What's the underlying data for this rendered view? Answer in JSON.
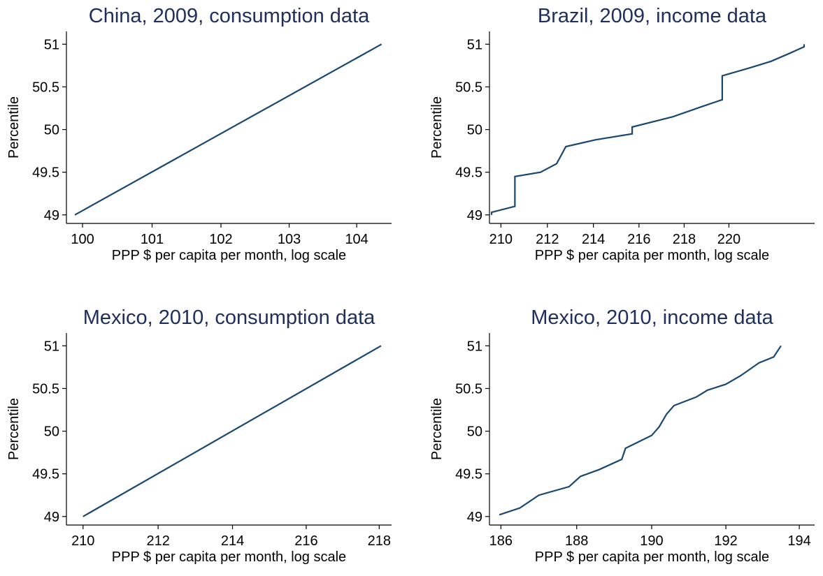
{
  "chart_data": [
    {
      "type": "line",
      "title": "China, 2009, consumption data",
      "x_label": "PPP $ per capita per month, log scale",
      "y_label": "Percentile",
      "xscale": "log",
      "x": [
        99.89,
        104.37
      ],
      "series": [
        {
          "color": "#1a476f",
          "values": [
            49,
            51
          ]
        }
      ],
      "xlim": [
        99.77,
        104.52
      ],
      "ylim": [
        48.9,
        51.15
      ],
      "xticks": [
        100,
        101,
        102,
        103,
        104
      ],
      "yticks": [
        49,
        49.5,
        50,
        50.5,
        51
      ]
    },
    {
      "type": "line",
      "title": "Brazil, 2009, income data",
      "x_label": "PPP $ per capita per month, log scale",
      "y_label": "Percentile",
      "xscale": "log",
      "x": [
        209.6,
        209.6,
        210.6,
        210.6,
        211.7,
        212.4,
        212.6,
        212.8,
        214.1,
        215.7,
        215.7,
        217.5,
        218.8,
        219.7,
        219.7,
        220.9,
        221.9,
        222.8,
        223.4,
        223.4
      ],
      "series": [
        {
          "color": "#1a476f",
          "values": [
            49,
            49.03,
            49.1,
            49.45,
            49.5,
            49.6,
            49.7,
            49.8,
            49.88,
            49.95,
            50.03,
            50.15,
            50.27,
            50.35,
            50.63,
            50.72,
            50.8,
            50.9,
            50.97,
            51
          ]
        }
      ],
      "xlim": [
        209.51,
        223.88
      ],
      "ylim": [
        48.9,
        51.15
      ],
      "xticks": [
        210,
        212,
        214,
        216,
        218,
        220
      ],
      "yticks": [
        49,
        49.5,
        50,
        50.5,
        51
      ]
    },
    {
      "type": "line",
      "title": "Mexico, 2010, consumption data",
      "x_label": "PPP $ per capita per month, log scale",
      "y_label": "Percentile",
      "xscale": "log",
      "x": [
        210.0,
        218.05
      ],
      "series": [
        {
          "color": "#1a476f",
          "values": [
            49,
            51
          ]
        }
      ],
      "xlim": [
        209.56,
        218.34
      ],
      "ylim": [
        48.9,
        51.15
      ],
      "xticks": [
        210,
        212,
        214,
        216,
        218
      ],
      "yticks": [
        49,
        49.5,
        50,
        50.5,
        51
      ]
    },
    {
      "type": "line",
      "title": "Mexico, 2010, income data",
      "x_label": "PPP $ per capita per month, log scale",
      "y_label": "Percentile",
      "xscale": "log",
      "x": [
        185.96,
        186.5,
        187.0,
        187.8,
        188.1,
        188.6,
        189.2,
        189.3,
        190.0,
        190.2,
        190.4,
        190.6,
        191.2,
        191.5,
        192.0,
        192.4,
        192.9,
        193.3,
        193.5
      ],
      "series": [
        {
          "color": "#1a476f",
          "values": [
            49.02,
            49.1,
            49.25,
            49.35,
            49.47,
            49.55,
            49.67,
            49.8,
            49.95,
            50.05,
            50.2,
            50.3,
            50.4,
            50.48,
            50.55,
            50.65,
            50.8,
            50.87,
            51
          ]
        }
      ],
      "xlim": [
        185.7,
        194.42
      ],
      "ylim": [
        48.9,
        51.15
      ],
      "xticks": [
        186,
        188,
        190,
        192,
        194
      ],
      "yticks": [
        49,
        49.5,
        50,
        50.5,
        51
      ]
    }
  ]
}
